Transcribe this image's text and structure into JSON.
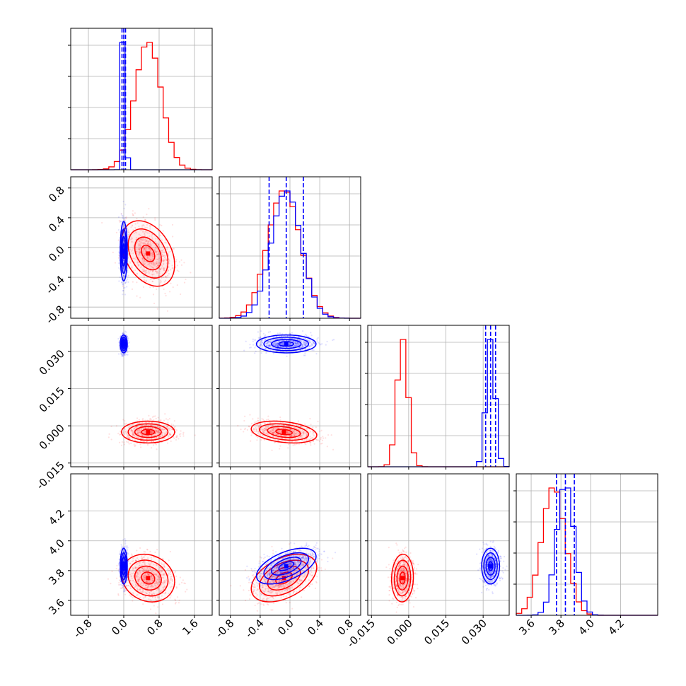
{
  "chart_data": {
    "type": "corner",
    "grid": true,
    "series": [
      {
        "color": "#ff0000",
        "mean": [
          0.55,
          -0.08,
          -0.0025,
          3.75
        ],
        "sd": [
          0.3,
          0.22,
          0.0022,
          0.08
        ],
        "corr": [
          [
            0,
            1,
            -0.35
          ],
          [
            1,
            2,
            -0.3
          ],
          [
            0,
            3,
            -0.15
          ],
          [
            1,
            3,
            0.45
          ],
          [
            2,
            3,
            0.05
          ]
        ]
      },
      {
        "color": "#0000ff",
        "mean": [
          0.0,
          -0.05,
          0.033,
          3.83
        ],
        "sd": [
          0.04,
          0.2,
          0.0018,
          0.06
        ],
        "corr": [
          [
            1,
            3,
            0.55
          ]
        ]
      }
    ],
    "quantile_lines": {
      "color": "#0000ff",
      "values": [
        [
          -0.04,
          0.0,
          0.04
        ],
        [
          -0.28,
          -0.05,
          0.18
        ],
        [
          0.031,
          0.033,
          0.035
        ],
        [
          3.77,
          3.83,
          3.89
        ]
      ]
    },
    "params": [
      {
        "range": [
          -1.2,
          2.0
        ],
        "ticks": [
          "-0.8",
          "0.0",
          "0.8",
          "1.6"
        ],
        "tick_values": [
          -0.8,
          0.0,
          0.8,
          1.6
        ]
      },
      {
        "range": [
          -0.95,
          0.95
        ],
        "ticks": [
          "-0.8",
          "-0.4",
          "0.0",
          "0.4",
          "0.8"
        ],
        "tick_values": [
          -0.8,
          -0.4,
          0.0,
          0.4,
          0.8
        ]
      },
      {
        "range": [
          -0.0165,
          0.0405
        ],
        "ticks": [
          "-0.015",
          "0.000",
          "0.015",
          "0.030"
        ],
        "tick_values": [
          -0.015,
          0.0,
          0.015,
          0.03
        ]
      },
      {
        "range": [
          3.5,
          4.45
        ],
        "ticks": [
          "3.6",
          "3.8",
          "4.0",
          "4.2"
        ],
        "tick_values": [
          3.6,
          3.8,
          4.0,
          4.2
        ]
      }
    ]
  }
}
